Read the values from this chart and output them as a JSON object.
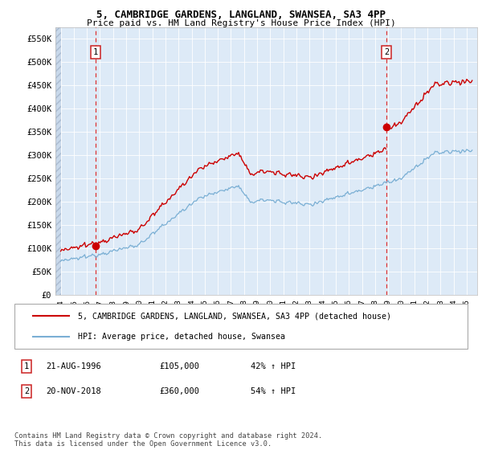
{
  "title1": "5, CAMBRIDGE GARDENS, LANGLAND, SWANSEA, SA3 4PP",
  "title2": "Price paid vs. HM Land Registry's House Price Index (HPI)",
  "ylabel_vals": [
    0,
    50000,
    100000,
    150000,
    200000,
    250000,
    300000,
    350000,
    400000,
    450000,
    500000,
    550000
  ],
  "ylabel_labels": [
    "£0",
    "£50K",
    "£100K",
    "£150K",
    "£200K",
    "£250K",
    "£300K",
    "£350K",
    "£400K",
    "£450K",
    "£500K",
    "£550K"
  ],
  "ylim": [
    0,
    575000
  ],
  "xlim_start": 1993.6,
  "xlim_end": 2025.8,
  "xtick_years": [
    1994,
    1995,
    1996,
    1997,
    1998,
    1999,
    2000,
    2001,
    2002,
    2003,
    2004,
    2005,
    2006,
    2007,
    2008,
    2009,
    2010,
    2011,
    2012,
    2013,
    2014,
    2015,
    2016,
    2017,
    2018,
    2019,
    2020,
    2021,
    2022,
    2023,
    2024,
    2025
  ],
  "sale1_x": 1996.646,
  "sale1_y": 105000,
  "sale2_x": 2018.896,
  "sale2_y": 360000,
  "hpi_color": "#7aafd4",
  "price_color": "#cc0000",
  "sale_marker_color": "#cc0000",
  "background_plot": "#ddeaf7",
  "legend_label1": "5, CAMBRIDGE GARDENS, LANGLAND, SWANSEA, SA3 4PP (detached house)",
  "legend_label2": "HPI: Average price, detached house, Swansea",
  "annotation1": [
    "1",
    "21-AUG-1996",
    "£105,000",
    "42% ↑ HPI"
  ],
  "annotation2": [
    "2",
    "20-NOV-2018",
    "£360,000",
    "54% ↑ HPI"
  ],
  "footer": "Contains HM Land Registry data © Crown copyright and database right 2024.\nThis data is licensed under the Open Government Licence v3.0."
}
